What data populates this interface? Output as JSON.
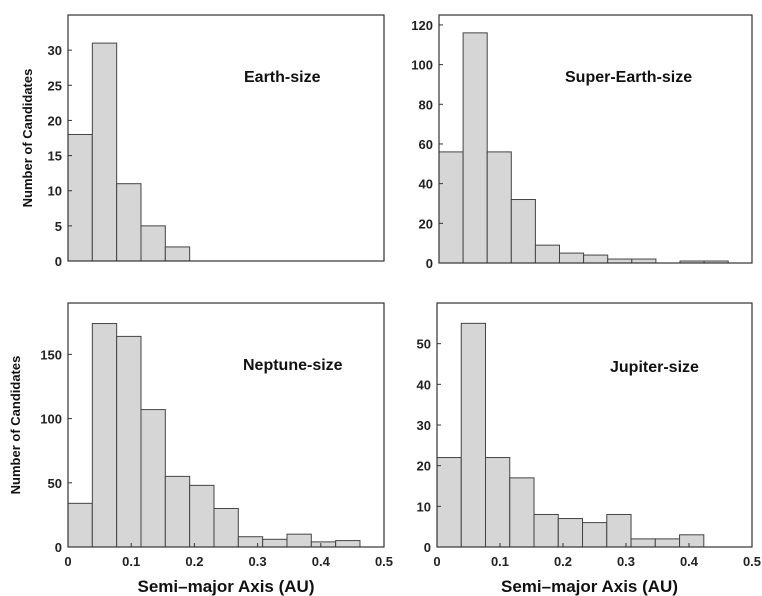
{
  "chart_data": [
    {
      "type": "bar",
      "panel_label": "Earth-size",
      "bin_width": 0.0385,
      "x_start": 0,
      "values": [
        18,
        31,
        11,
        5,
        2
      ],
      "xlim": [
        0,
        0.5
      ],
      "ylim": [
        0,
        35
      ],
      "yticks": [
        0,
        5,
        10,
        15,
        20,
        25,
        30
      ],
      "xticks": [],
      "ylabel": "Number of Candidates",
      "xlabel": ""
    },
    {
      "type": "bar",
      "panel_label": "Super-Earth-size",
      "bin_width": 0.0385,
      "x_start": 0,
      "values": [
        56,
        116,
        56,
        32,
        9,
        5,
        4,
        2,
        2,
        0,
        1,
        1
      ],
      "xlim": [
        0,
        0.5
      ],
      "ylim": [
        0,
        125
      ],
      "yticks": [
        0,
        20,
        40,
        60,
        80,
        100,
        120
      ],
      "xticks": [],
      "ylabel": "",
      "xlabel": ""
    },
    {
      "type": "bar",
      "panel_label": "Neptune-size",
      "bin_width": 0.0385,
      "x_start": 0,
      "values": [
        34,
        174,
        164,
        107,
        55,
        48,
        30,
        8,
        6,
        10,
        4,
        5
      ],
      "xlim": [
        0,
        0.5
      ],
      "ylim": [
        0,
        190
      ],
      "yticks": [
        0,
        50,
        100,
        150
      ],
      "xticks": [
        "0",
        "0.1",
        "0.2",
        "0.3",
        "0.4",
        "0.5"
      ],
      "ylabel": "Number of Candidates",
      "xlabel": "Semi–major Axis (AU)"
    },
    {
      "type": "bar",
      "panel_label": "Jupiter-size",
      "bin_width": 0.0385,
      "x_start": 0,
      "values": [
        22,
        55,
        22,
        17,
        8,
        7,
        6,
        8,
        2,
        2,
        3
      ],
      "xlim": [
        0,
        0.5
      ],
      "ylim": [
        0,
        60
      ],
      "yticks": [
        0,
        10,
        20,
        30,
        40,
        50
      ],
      "xticks": [
        "0",
        "0.1",
        "0.2",
        "0.3",
        "0.4",
        "0.5"
      ],
      "ylabel": "",
      "xlabel": "Semi–major Axis (AU)"
    }
  ]
}
